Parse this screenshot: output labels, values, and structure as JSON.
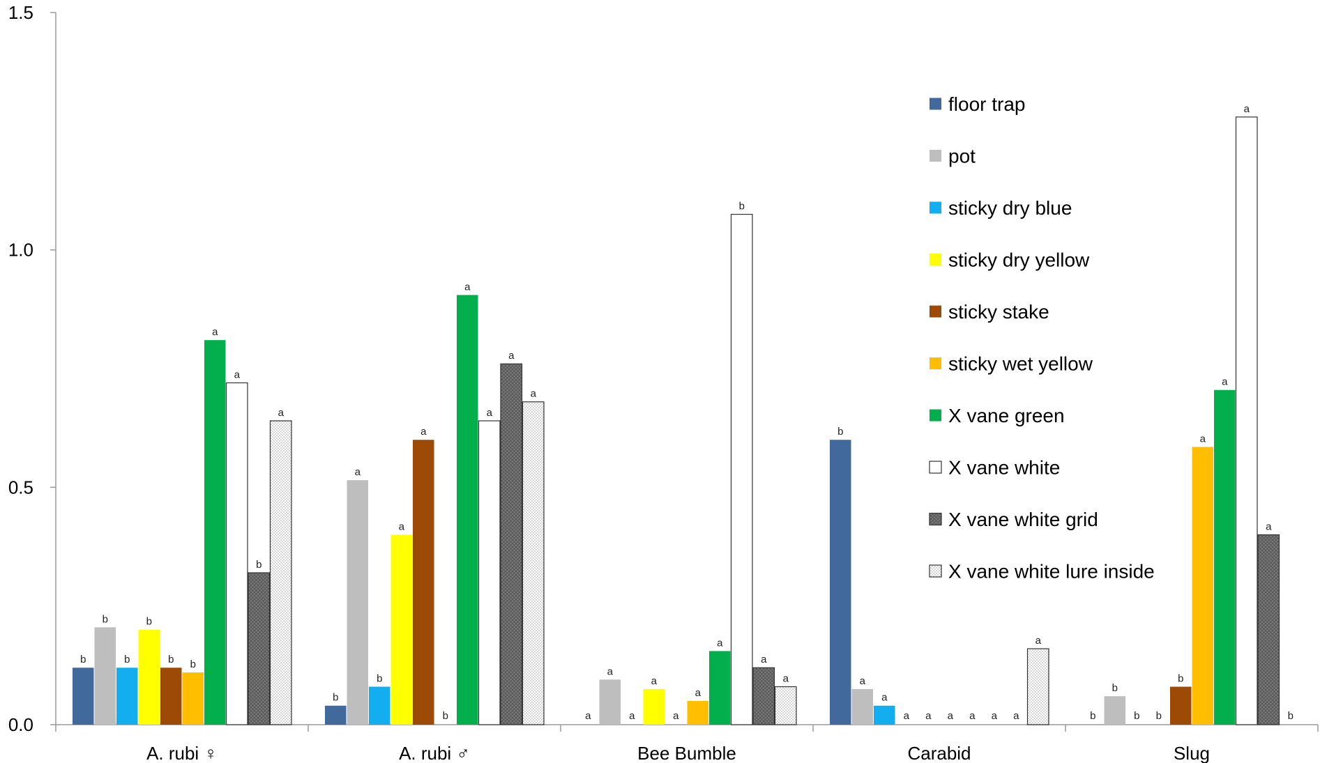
{
  "chart_data": {
    "type": "bar",
    "title": "",
    "xlabel": "",
    "ylabel": "",
    "ylim": [
      0,
      1.5
    ],
    "yticks": [
      "0.0",
      "0.5",
      "1.0",
      "1.5"
    ],
    "grid": false,
    "legend_position": "right",
    "categories": [
      "A. rubi ♀",
      "A. rubi ♂",
      "Bee Bumble",
      "Carabid",
      "Slug"
    ],
    "series": [
      {
        "name": "floor trap",
        "color": "#41699C",
        "pattern": "solid",
        "values": [
          0.12,
          0.04,
          0,
          0.6,
          0
        ],
        "labels": [
          "b",
          "b",
          "a",
          "b",
          "b"
        ]
      },
      {
        "name": "pot",
        "color": "#BEBEBE",
        "pattern": "solid",
        "values": [
          0.205,
          0.515,
          0.095,
          0.075,
          0.06
        ],
        "labels": [
          "b",
          "a",
          "a",
          "a",
          "b"
        ]
      },
      {
        "name": "sticky dry blue",
        "color": "#12AEEF",
        "pattern": "solid",
        "values": [
          0.12,
          0.08,
          0,
          0.04,
          0
        ],
        "labels": [
          "b",
          "b",
          "a",
          "a",
          "b"
        ]
      },
      {
        "name": "sticky dry yellow",
        "color": "#FFFF00",
        "pattern": "solid",
        "values": [
          0.2,
          0.4,
          0.075,
          0,
          0
        ],
        "labels": [
          "b",
          "a",
          "a",
          "a",
          "b"
        ]
      },
      {
        "name": "sticky stake",
        "color": "#9C4A06",
        "pattern": "solid",
        "values": [
          0.12,
          0.6,
          0,
          0,
          0.08
        ],
        "labels": [
          "b",
          "a",
          "a",
          "a",
          "b"
        ]
      },
      {
        "name": "sticky wet yellow",
        "color": "#FFBF00",
        "pattern": "solid",
        "values": [
          0.11,
          0,
          0.05,
          0,
          0.585
        ],
        "labels": [
          "b",
          "b",
          "a",
          "a",
          "a"
        ]
      },
      {
        "name": "X vane green",
        "color": "#03AF4C",
        "pattern": "solid",
        "values": [
          0.81,
          0.905,
          0.155,
          0,
          0.705
        ],
        "labels": [
          "a",
          "a",
          "a",
          "a",
          "a"
        ]
      },
      {
        "name": "X vane white",
        "color": "#FFFFFF",
        "pattern": "solid",
        "values": [
          0.72,
          0.64,
          1.075,
          0,
          1.28
        ],
        "labels": [
          "a",
          "a",
          "b",
          "a",
          "a"
        ]
      },
      {
        "name": "X vane white grid",
        "color": "#7A7A7A",
        "pattern": "grid",
        "values": [
          0.32,
          0.76,
          0.12,
          0,
          0.4
        ],
        "labels": [
          "b",
          "a",
          "a",
          "a",
          "a"
        ]
      },
      {
        "name": "X vane white lure inside",
        "color": "#FFFFFF",
        "pattern": "dots",
        "values": [
          0.64,
          0.68,
          0.08,
          0.16,
          0
        ],
        "labels": [
          "a",
          "a",
          "a",
          "a",
          "b"
        ]
      }
    ]
  }
}
